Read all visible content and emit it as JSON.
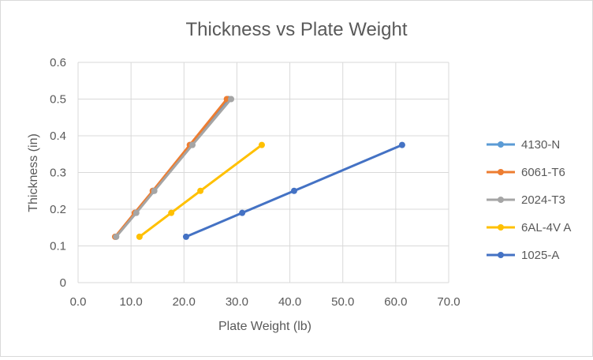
{
  "chart_data": {
    "type": "scatter",
    "title": "Thickness vs Plate Weight",
    "xlabel": "Plate Weight (lb)",
    "ylabel": "Thickness (in)",
    "xlim": [
      0,
      70
    ],
    "ylim": [
      0,
      0.6
    ],
    "x_ticks": [
      "0.0",
      "10.0",
      "20.0",
      "30.0",
      "40.0",
      "50.0",
      "60.0",
      "70.0"
    ],
    "y_ticks": [
      "0",
      "0.1",
      "0.2",
      "0.3",
      "0.4",
      "0.5",
      "0.6"
    ],
    "grid": true,
    "legend_position": "right",
    "series": [
      {
        "name": "4130-N",
        "color": "#5B9BD5",
        "points": [
          [
            7.1,
            0.125
          ],
          [
            10.8,
            0.19
          ],
          [
            14.2,
            0.25
          ],
          [
            21.3,
            0.375
          ],
          [
            28.4,
            0.5
          ]
        ]
      },
      {
        "name": "6061-T6",
        "color": "#ED7D31",
        "points": [
          [
            7.0,
            0.125
          ],
          [
            10.7,
            0.19
          ],
          [
            14.1,
            0.25
          ],
          [
            21.1,
            0.375
          ],
          [
            28.1,
            0.5
          ]
        ]
      },
      {
        "name": "2024-T3",
        "color": "#A5A5A5",
        "points": [
          [
            7.2,
            0.125
          ],
          [
            11.0,
            0.19
          ],
          [
            14.4,
            0.25
          ],
          [
            21.6,
            0.375
          ],
          [
            28.9,
            0.5
          ]
        ]
      },
      {
        "name": "6AL-4V A",
        "color": "#FFC000",
        "points": [
          [
            11.6,
            0.125
          ],
          [
            17.6,
            0.19
          ],
          [
            23.1,
            0.25
          ],
          [
            34.7,
            0.375
          ]
        ]
      },
      {
        "name": "1025-A",
        "color": "#4472C4",
        "points": [
          [
            20.4,
            0.125
          ],
          [
            31.0,
            0.19
          ],
          [
            40.8,
            0.25
          ],
          [
            61.2,
            0.375
          ]
        ]
      }
    ]
  }
}
